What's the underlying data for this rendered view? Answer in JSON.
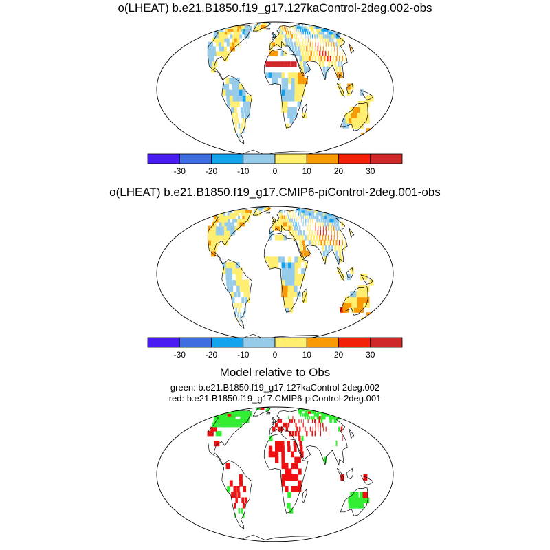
{
  "panels": [
    {
      "title": "o(LHEAT) b.e21.B1850.f19_g17.127kaControl-2deg.002-obs",
      "variant": 1
    },
    {
      "title": "o(LHEAT) b.e21.B1850.f19_g17.CMIP6-piControl-2deg.001-obs",
      "variant": 2
    }
  ],
  "colorbar": {
    "colors": [
      "#4a1cf5",
      "#3f6ee0",
      "#16a3ee",
      "#97cbea",
      "#ffee70",
      "#f89a06",
      "#f42008",
      "#cf2a2a"
    ],
    "labels": [
      "-30",
      "-20",
      "-10",
      "0",
      "10",
      "20",
      "30"
    ]
  },
  "comparison": {
    "title": "Model relative to Obs",
    "legend_green": "green: b.e21.B1850.f19_g17.127kaControl-2deg.002",
    "legend_red": "red: b.e21.B1850.f19_g17.CMIP6-piControl-2deg.001",
    "colors": {
      "green": "#33ee33",
      "red": "#ee1111"
    }
  }
}
